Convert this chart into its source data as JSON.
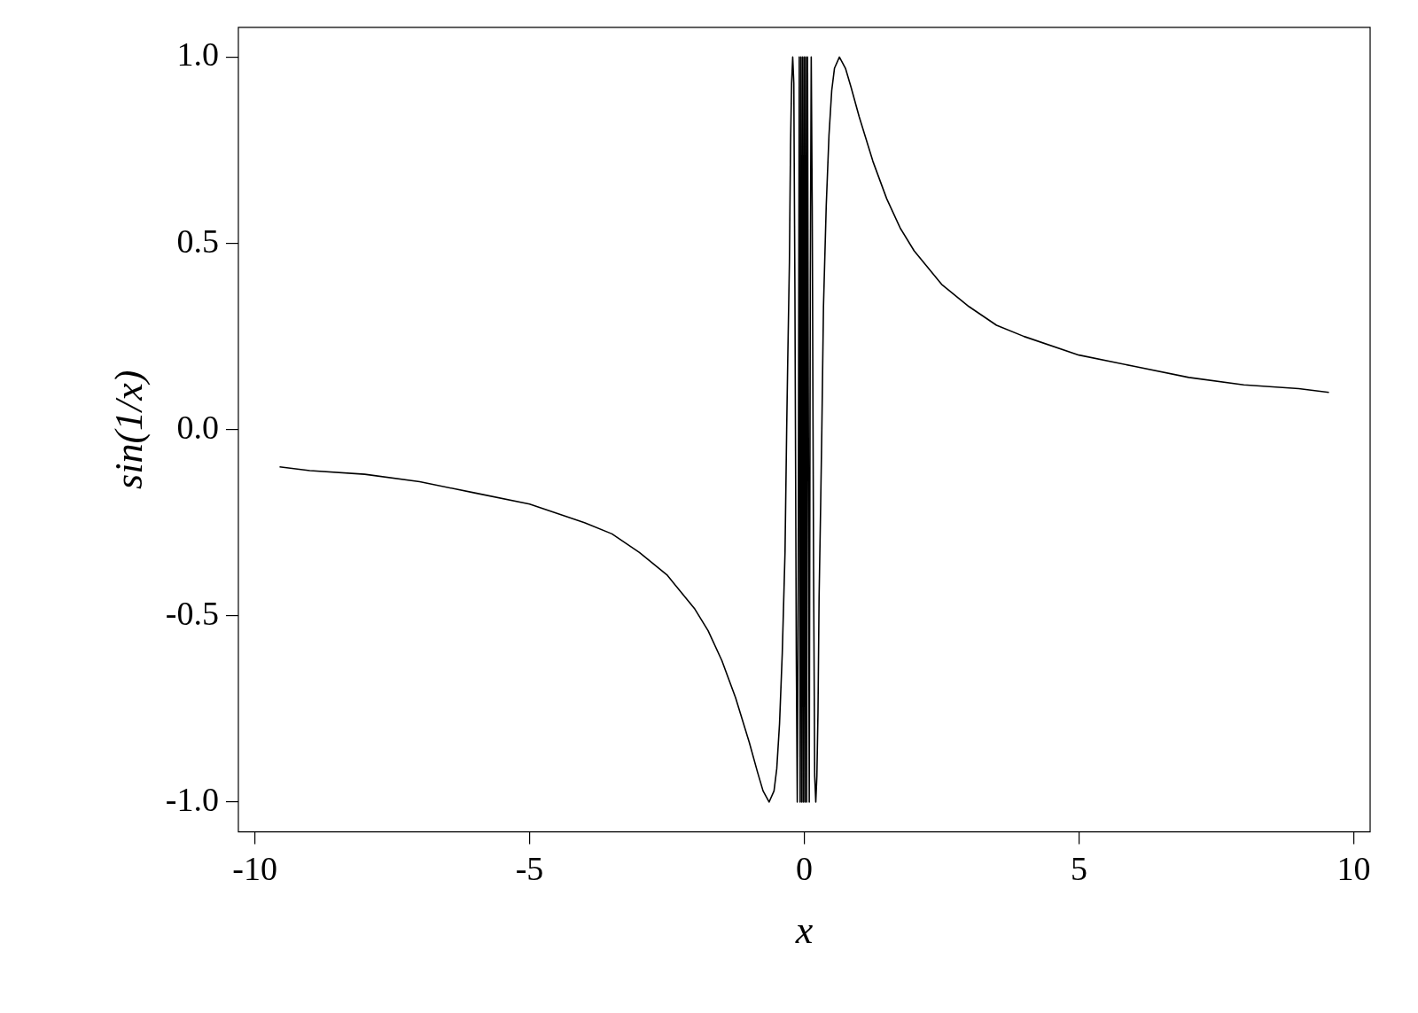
{
  "chart_data": {
    "type": "line",
    "xlabel": "x",
    "ylabel": "sin(1/x)",
    "x": [
      -9.55,
      -9,
      -8,
      -7,
      -6,
      -5,
      -4,
      -3.5,
      -3,
      -2.5,
      -2,
      -1.75,
      -1.5,
      -1.25,
      -1,
      -0.85,
      -0.75,
      -0.64,
      -0.55,
      -0.5,
      -0.45,
      -0.4,
      -0.35,
      -0.32,
      -0.3,
      -0.27,
      -0.25,
      -0.23,
      -0.21,
      -0.19,
      -0.17,
      -0.16,
      -0.145,
      -0.127,
      -0.11,
      -0.091,
      -0.075,
      -0.06,
      -0.045,
      -0.03,
      -0.015,
      0,
      0.015,
      0.03,
      0.045,
      0.06,
      0.091,
      0.11,
      0.127,
      0.145,
      0.16,
      0.17,
      0.19,
      0.21,
      0.23,
      0.25,
      0.27,
      0.3,
      0.32,
      0.35,
      0.4,
      0.45,
      0.5,
      0.55,
      0.64,
      0.75,
      0.85,
      1,
      1.25,
      1.5,
      1.75,
      2,
      2.5,
      3,
      3.5,
      4,
      5,
      6,
      7,
      8,
      9,
      9.55
    ],
    "values": [
      -0.1,
      -0.11,
      -0.12,
      -0.14,
      -0.17,
      -0.2,
      -0.25,
      -0.28,
      -0.33,
      -0.39,
      -0.48,
      -0.54,
      -0.62,
      -0.72,
      -0.84,
      -0.92,
      -0.97,
      -1,
      -0.97,
      -0.91,
      -0.79,
      -0.6,
      -0.33,
      0,
      0.19,
      0.45,
      0.76,
      0.93,
      1,
      0.93,
      0.38,
      0,
      -0.6,
      -1,
      -0.4,
      1,
      -1,
      1,
      -1,
      1,
      -1,
      1,
      -1,
      1,
      -1,
      1,
      -1,
      0.4,
      1,
      0.6,
      0,
      -0.38,
      -0.93,
      -1,
      -0.93,
      -0.76,
      -0.45,
      -0.19,
      0,
      0.33,
      0.6,
      0.79,
      0.91,
      0.97,
      1,
      0.97,
      0.92,
      0.84,
      0.72,
      0.62,
      0.54,
      0.48,
      0.39,
      0.33,
      0.28,
      0.25,
      0.2,
      0.17,
      0.14,
      0.12,
      0.11,
      0.1
    ],
    "color": "#000000",
    "marker": "none",
    "line_style": "solid",
    "xlim": [
      -10.3,
      10.3
    ],
    "ylim": [
      -1.08,
      1.08
    ],
    "xticks": [
      -10,
      -5,
      0,
      5,
      10
    ],
    "yticks": [
      {
        "value": -1,
        "label": "-1.0"
      },
      {
        "value": -0.5,
        "label": "-0.5"
      },
      {
        "value": 0,
        "label": "0.0"
      },
      {
        "value": 0.5,
        "label": "0.5"
      },
      {
        "value": 1,
        "label": "1.0"
      }
    ],
    "grid": false,
    "legend": false
  }
}
